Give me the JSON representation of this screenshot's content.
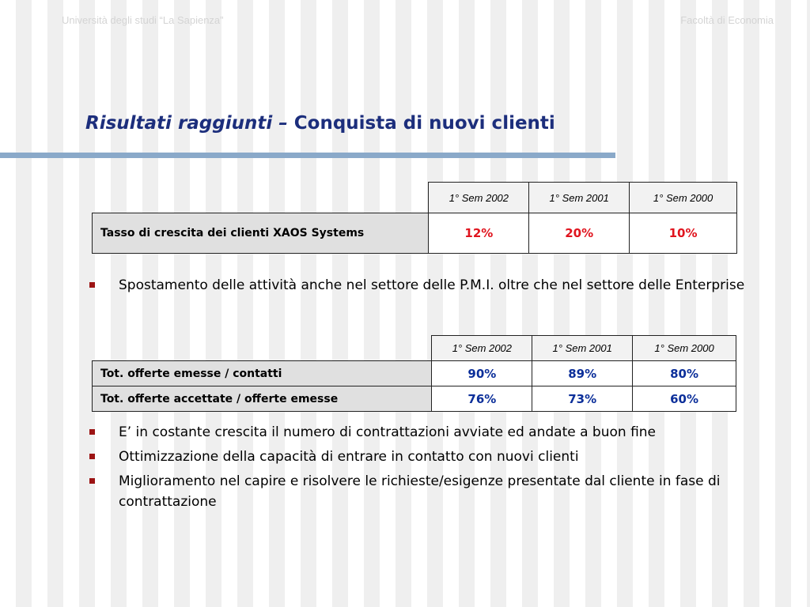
{
  "header": {
    "left": "Università degli studi “La Sapienza”",
    "right": "Facoltà di Economia"
  },
  "title": {
    "italic": "Risultati raggiunti –",
    "rest": "Conquista di nuovi clienti"
  },
  "table1": {
    "columns": [
      "1° Sem 2002",
      "1° Sem 2001",
      "1° Sem 2000"
    ],
    "rows": [
      {
        "label": "Tasso di crescita dei clienti XAOS Systems",
        "values": [
          "12%",
          "20%",
          "10%"
        ]
      }
    ]
  },
  "bullets1": [
    "Spostamento  delle attività anche nel settore delle P.M.I. oltre che nel settore delle Enterprise"
  ],
  "table2": {
    "columns": [
      "1° Sem 2002",
      "1° Sem 2001",
      "1° Sem 2000"
    ],
    "rows": [
      {
        "label": "Tot. offerte emesse / contatti",
        "values": [
          "90%",
          "89%",
          "80%"
        ]
      },
      {
        "label": "Tot. offerte accettate / offerte emesse",
        "values": [
          "76%",
          "73%",
          "60%"
        ]
      }
    ]
  },
  "bullets2": [
    "E’ in costante crescita il numero di contrattazioni avviate ed andate a buon fine",
    "Ottimizzazione della capacità di entrare in contatto con nuovi clienti",
    "Miglioramento nel capire e risolvere le richieste/esigenze presentate dal cliente in fase di contrattazione"
  ],
  "colors": {
    "title": "#1c2e7c",
    "rule": "#8aa9c9",
    "table1_values": "#e0141e",
    "table2_values": "#0c2f9a",
    "bullet": "#9c1414"
  },
  "icons": {
    "bullet": "square-bullet-icon"
  }
}
